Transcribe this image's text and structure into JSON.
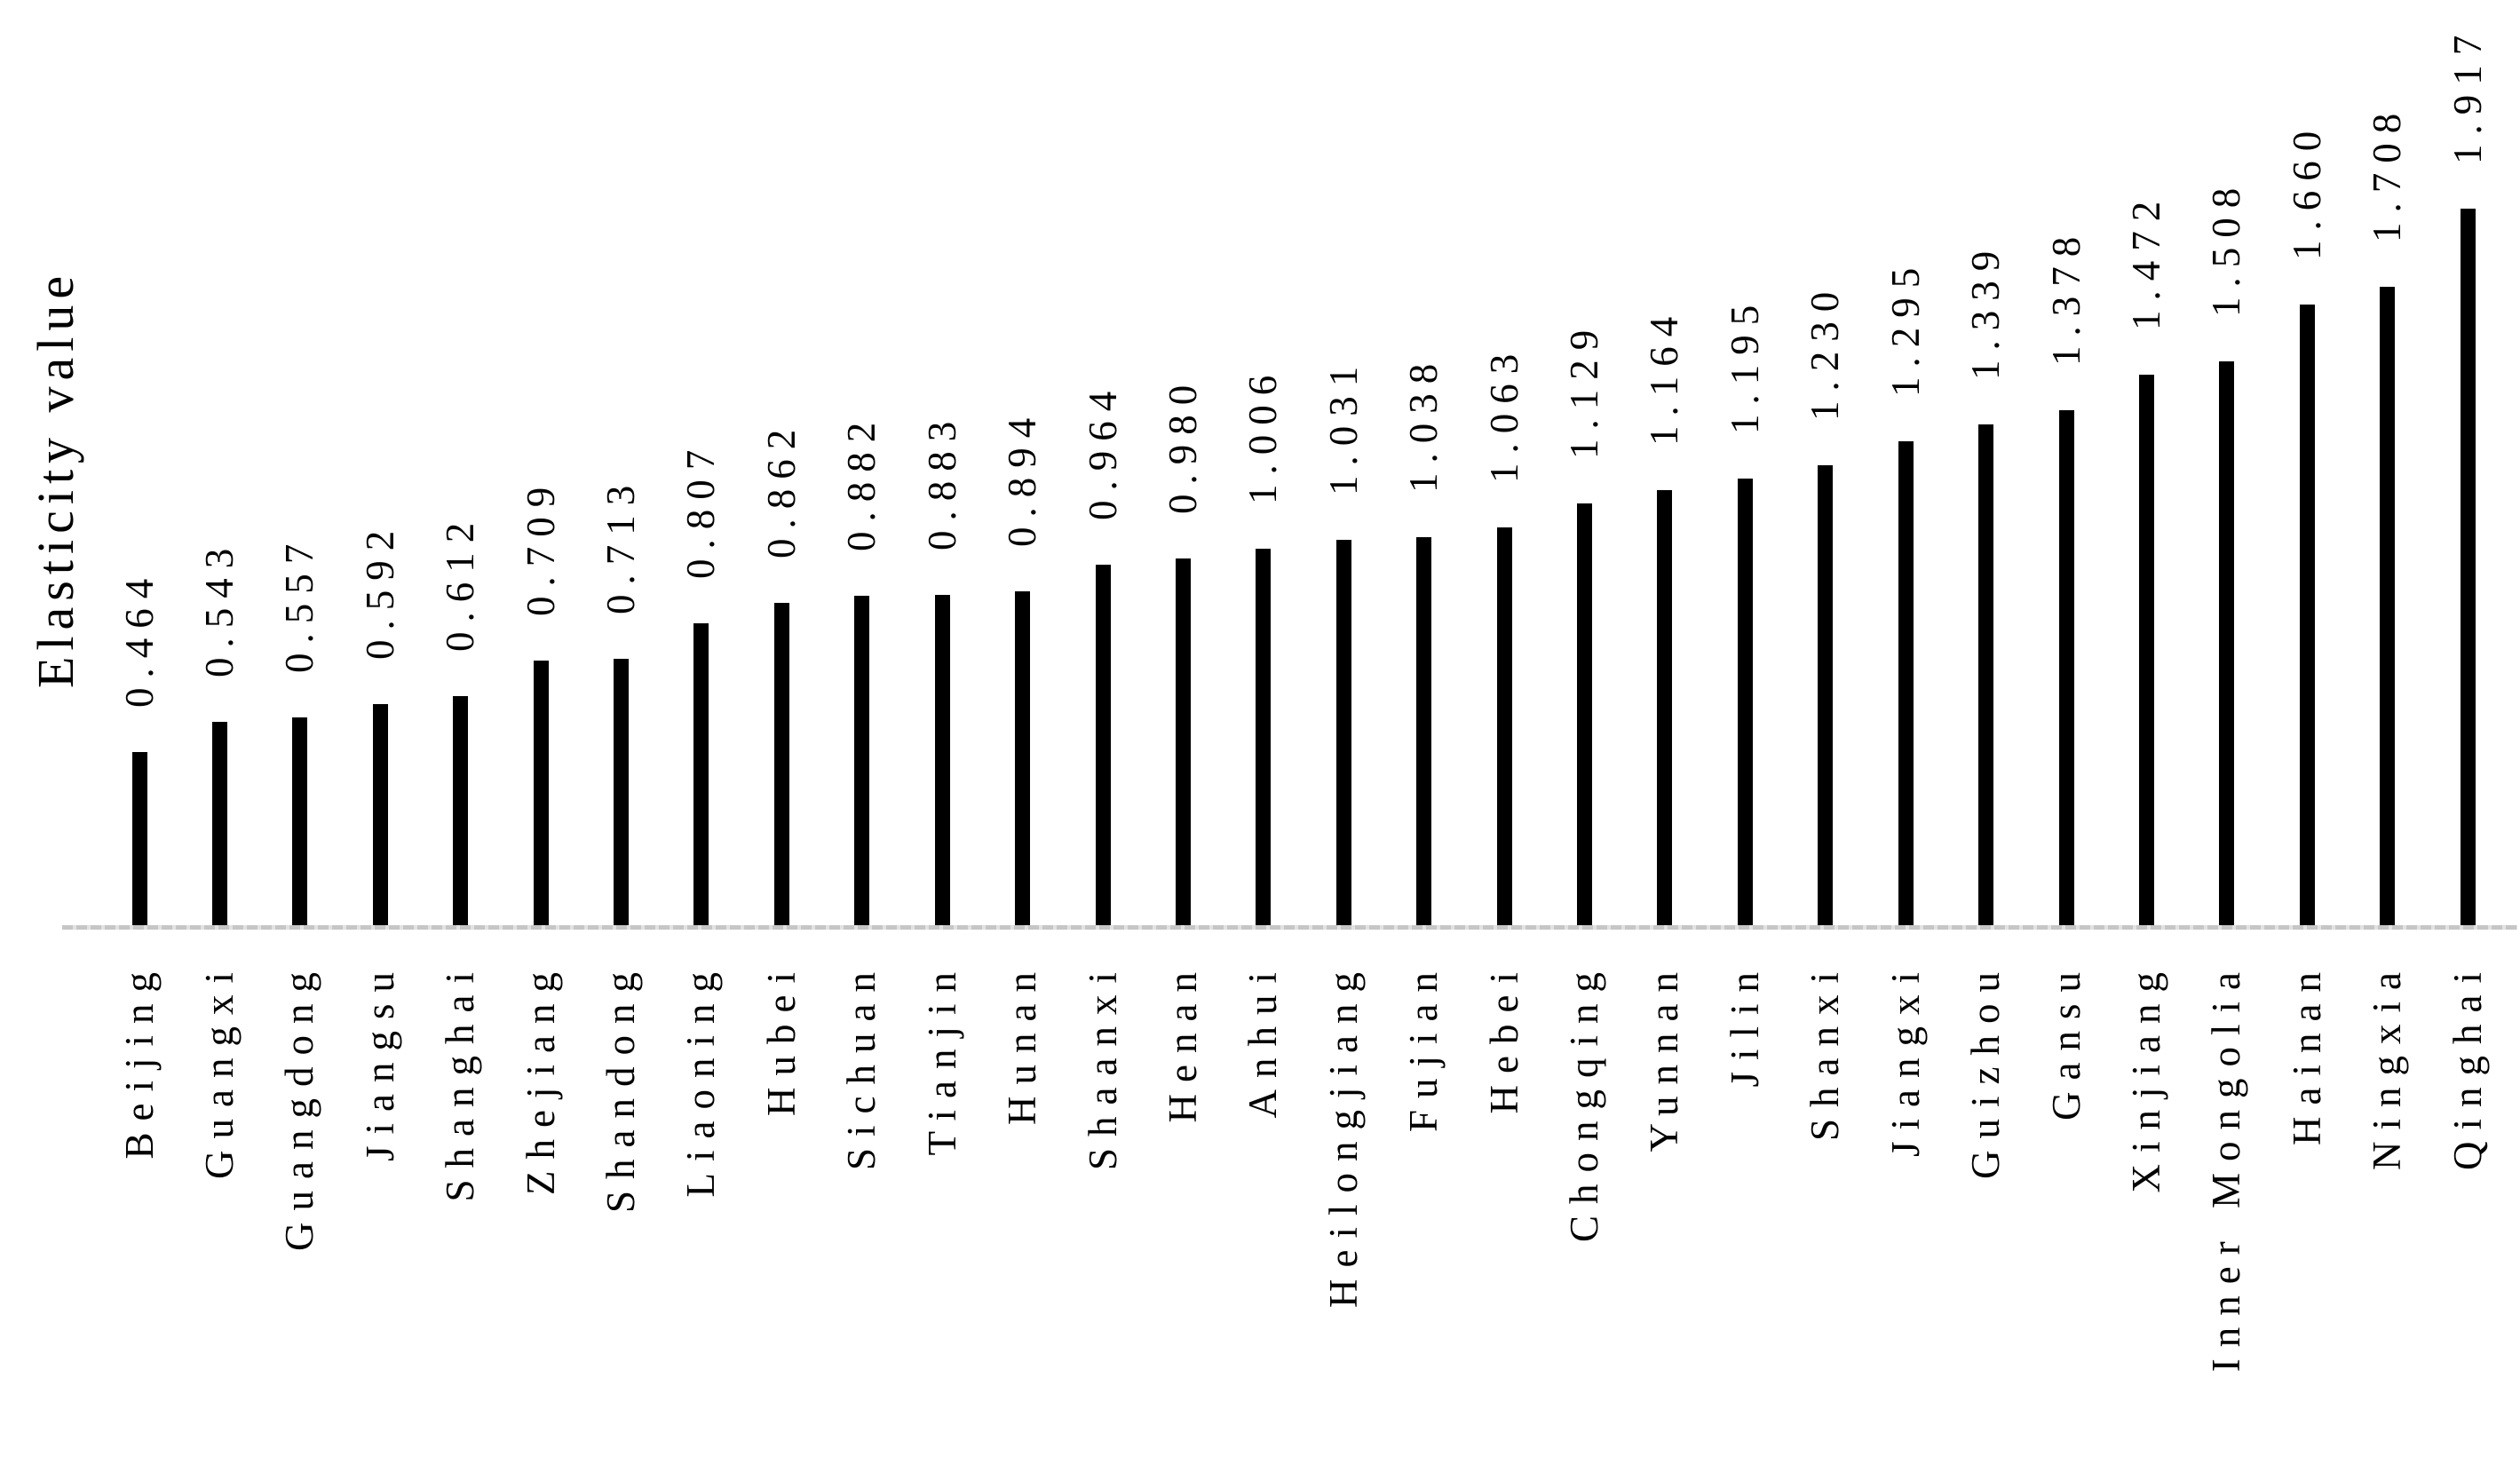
{
  "chart_data": {
    "type": "bar",
    "title": "",
    "ylabel": "Elasticity value",
    "xlabel": "",
    "categories": [
      "Beijing",
      "Guangxi",
      "Guangdong",
      "Jiangsu",
      "Shanghai",
      "Zhejiang",
      "Shandong",
      "Liaoning",
      "Hubei",
      "Sichuan",
      "Tianjin",
      "Hunan",
      "Shaanxi",
      "Henan",
      "Anhui",
      "Heilongjiang",
      "Fujian",
      "Hebei",
      "Chongqing",
      "Yunnan",
      "Jilin",
      "Shanxi",
      "Jiangxi",
      "Guizhou",
      "Gansu",
      "Xinjiang",
      "Inner Mongolia",
      "Hainan",
      "Ningxia",
      "Qinghai"
    ],
    "values": [
      0.464,
      0.543,
      0.557,
      0.592,
      0.612,
      0.709,
      0.713,
      0.807,
      0.862,
      0.882,
      0.883,
      0.894,
      0.964,
      0.98,
      1.006,
      1.031,
      1.038,
      1.063,
      1.129,
      1.164,
      1.195,
      1.23,
      1.295,
      1.339,
      1.378,
      1.472,
      1.508,
      1.66,
      1.708,
      1.917
    ],
    "value_labels": [
      "0.464",
      "0.543",
      "0.557",
      "0.592",
      "0.612",
      "0.709",
      "0.713",
      "0.807",
      "0.862",
      "0.882",
      "0.883",
      "0.894",
      "0.964",
      "0.980",
      "1.006",
      "1.031",
      "1.038",
      "1.063",
      "1.129",
      "1.164",
      "1.195",
      "1.230",
      "1.295",
      "1.339",
      "1.378",
      "1.472",
      "1.508",
      "1.660",
      "1.708",
      "1.917"
    ],
    "bar_color": "#000000",
    "text_color": "#000000",
    "axis_line_color": "#c6c6c6",
    "background_color": "#ffffff",
    "ylim": [
      0,
      2.0
    ],
    "grid": "off",
    "legend": "none",
    "bar_orientation": "vertical",
    "value_label_rotation_deg": 90,
    "category_label_rotation_deg": 90,
    "bars_sorted": "ascending"
  }
}
